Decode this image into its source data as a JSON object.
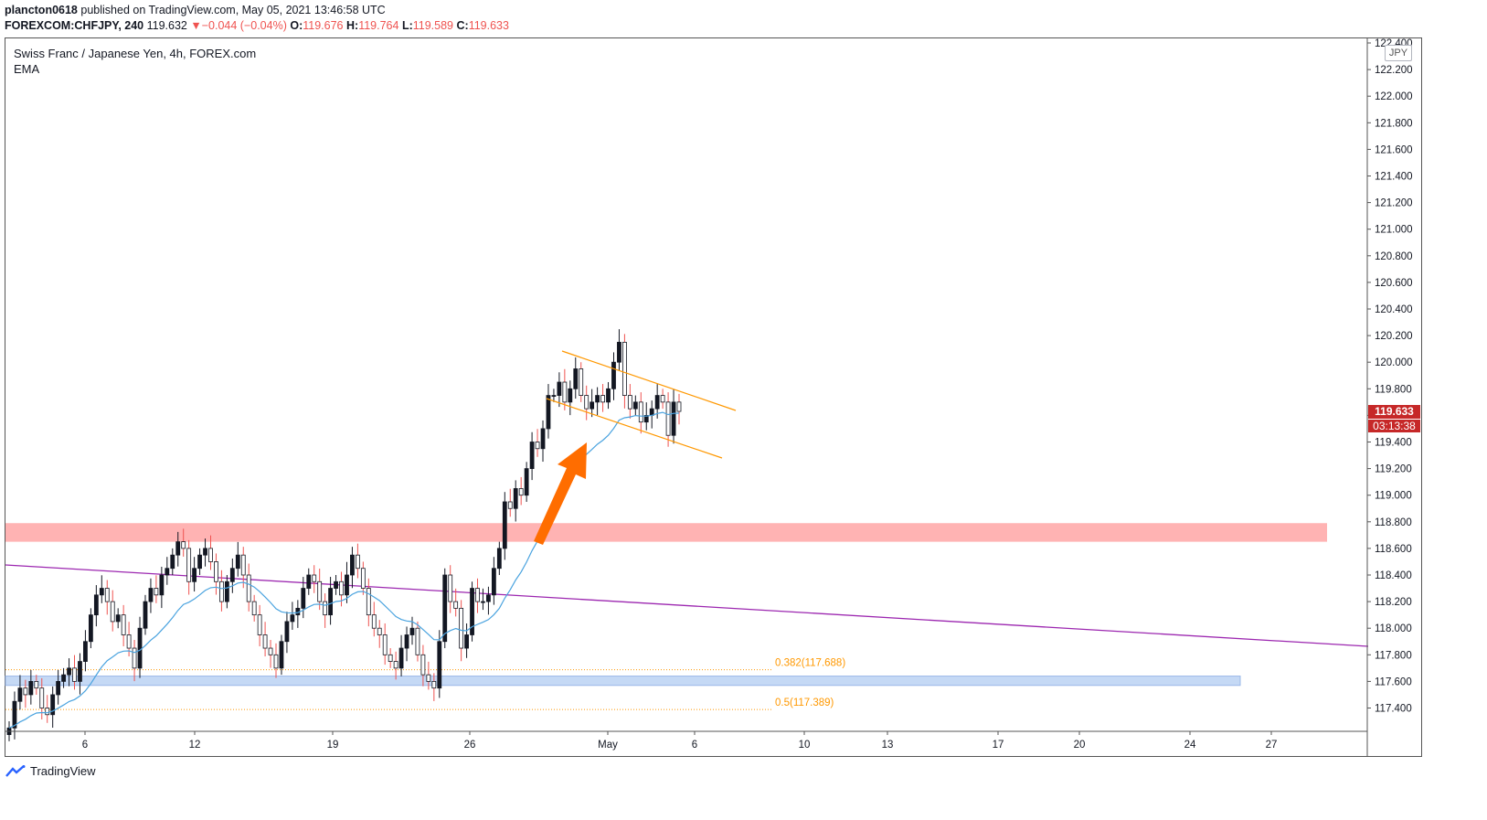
{
  "header": {
    "publisher": "plancton0618",
    "published_text": "published on TradingView.com, May 05, 2021 13:46:58 UTC",
    "symbol": "FOREXCOM:CHFJPY, 240",
    "last": "119.632",
    "change": "−0.044 (−0.04%)",
    "o_label": "O:",
    "o": "119.676",
    "h_label": "H:",
    "h": "119.764",
    "l_label": "L:",
    "l": "119.589",
    "c_label": "C:",
    "c": "119.633"
  },
  "legend": {
    "title": "Swiss Franc / Japanese Yen, 4h, FOREX.com",
    "indicator": "EMA"
  },
  "axis": {
    "currency": "JPY",
    "current_price": "119.633",
    "countdown": "03:13:38"
  },
  "brand": "TradingView",
  "colors": {
    "up": "#131722",
    "down": "#ef5350",
    "ema": "#4aa3df",
    "channel": "#ff9800",
    "arrow": "#ff6d00",
    "resistance_zone": "#ffb3b3",
    "support_zone": "#c5d9f5",
    "trendline": "#9c27b0",
    "fib": "#ff9800",
    "price_label": "#c62828"
  },
  "chart_data": {
    "type": "candlestick",
    "title": "Swiss Franc / Japanese Yen, 4h, FOREX.com",
    "ylim": [
      117.2,
      122.4
    ],
    "y_ticks": [
      "117.400",
      "117.600",
      "117.800",
      "118.000",
      "118.200",
      "118.400",
      "118.600",
      "118.800",
      "119.000",
      "119.200",
      "119.400",
      "119.600",
      "119.800",
      "120.000",
      "120.200",
      "120.400",
      "120.600",
      "120.800",
      "121.000",
      "121.200",
      "121.400",
      "121.600",
      "121.800",
      "122.000",
      "122.200",
      "122.400"
    ],
    "x_ticks": [
      "6",
      "12",
      "19",
      "26",
      "May",
      "6",
      "10",
      "13",
      "17",
      "20",
      "24",
      "27"
    ],
    "fib_levels": [
      {
        "label": "0.382(117.688)",
        "value": 117.688
      },
      {
        "label": "0.5(117.389)",
        "value": 117.389
      }
    ],
    "zones": [
      {
        "name": "resistance",
        "from": 118.65,
        "to": 118.79
      },
      {
        "name": "support",
        "from": 117.57,
        "to": 117.64
      }
    ],
    "candles_close": [
      117.25,
      117.45,
      117.55,
      117.5,
      117.6,
      117.55,
      117.4,
      117.35,
      117.5,
      117.6,
      117.65,
      117.7,
      117.6,
      117.75,
      117.9,
      118.1,
      118.25,
      118.3,
      118.2,
      118.05,
      118.1,
      117.95,
      117.85,
      117.7,
      118.0,
      118.2,
      118.3,
      118.25,
      118.4,
      118.45,
      118.55,
      118.65,
      118.6,
      118.35,
      118.45,
      118.55,
      118.6,
      118.5,
      118.35,
      118.2,
      118.35,
      118.45,
      118.55,
      118.4,
      118.2,
      118.1,
      117.95,
      117.85,
      117.8,
      117.7,
      117.9,
      118.05,
      118.1,
      118.15,
      118.3,
      118.4,
      118.35,
      118.2,
      118.1,
      118.3,
      118.35,
      118.25,
      118.4,
      118.55,
      118.45,
      118.3,
      118.1,
      118.0,
      117.95,
      117.8,
      117.75,
      117.7,
      117.85,
      117.95,
      118.0,
      117.8,
      117.65,
      117.6,
      117.55,
      117.9,
      118.4,
      118.2,
      118.15,
      117.85,
      117.95,
      118.3,
      118.2,
      118.2,
      118.25,
      118.45,
      118.6,
      118.95,
      118.9,
      119.05,
      119.0,
      119.2,
      119.4,
      119.35,
      119.5,
      119.75,
      119.75,
      119.85,
      119.7,
      119.8,
      119.95,
      119.75,
      119.65,
      119.7,
      119.75,
      119.7,
      119.8,
      120.0,
      120.15,
      119.75,
      119.65,
      119.7,
      119.55,
      119.6,
      119.65,
      119.75,
      119.7,
      119.45,
      119.7,
      119.63
    ]
  }
}
